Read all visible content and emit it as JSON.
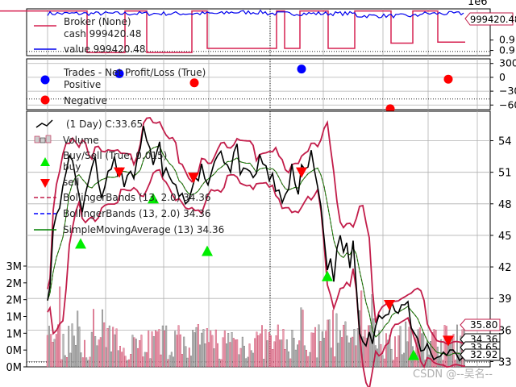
{
  "chart_data": [
    {
      "type": "line",
      "panel": "broker",
      "exponent_label": "1e6",
      "ylim": [
        999385,
        999430
      ],
      "yticks": [
        {
          "v": 999400,
          "t": "0.9"
        },
        {
          "v": 999390,
          "t": "0.9"
        }
      ],
      "series": [
        {
          "name": "Broker (None)",
          "values": []
        },
        {
          "name": "cash 999420.48",
          "color": "#d62050",
          "steps": [
            [
              0,
              999428
            ],
            [
              108,
              999428
            ],
            [
              108,
              999388
            ],
            [
              155,
              999388
            ],
            [
              155,
              999428
            ],
            [
              182,
              999428
            ],
            [
              182,
              999388
            ],
            [
              238,
              999388
            ],
            [
              238,
              999428
            ],
            [
              257,
              999428
            ],
            [
              257,
              999392
            ],
            [
              343,
              999392
            ],
            [
              343,
              999428
            ],
            [
              353,
              999428
            ],
            [
              353,
              999392
            ],
            [
              372,
              999392
            ],
            [
              372,
              999428
            ],
            [
              407,
              999428
            ],
            [
              407,
              999392
            ],
            [
              440,
              999392
            ],
            [
              440,
              999428
            ],
            [
              485,
              999428
            ],
            [
              485,
              999397
            ],
            [
              512,
              999397
            ],
            [
              512,
              999428
            ],
            [
              543,
              999428
            ],
            [
              543,
              999398
            ],
            [
              577,
              999398
            ]
          ]
        },
        {
          "name": "value 999420.48",
          "color": "#0000ee"
        }
      ],
      "last_value_label": "999420.48",
      "hline": 999389
    },
    {
      "type": "scatter",
      "panel": "trades",
      "ylim": [
        -700,
        400
      ],
      "yticks": [
        {
          "v": 300,
          "t": "300"
        },
        {
          "v": 0,
          "t": "0"
        },
        {
          "v": -300,
          "t": "−30"
        },
        {
          "v": -600,
          "t": "−60"
        }
      ],
      "title_text": "Trades - Net Profit/Loss (True)",
      "series": [
        {
          "name": "Positive",
          "color": "#0000ff",
          "points": [
            [
              148,
              80
            ],
            [
              374,
              180
            ]
          ]
        },
        {
          "name": "Negative",
          "color": "#ff0000",
          "points": [
            [
              241,
              -120
            ],
            [
              484,
              -680
            ],
            [
              556,
              -40
            ]
          ]
        }
      ]
    },
    {
      "type": "line",
      "panel": "price",
      "ylim": [
        32.5,
        56.8
      ],
      "yticks": [
        "33",
        "36",
        "39",
        "42",
        "45",
        "48",
        "51",
        "54"
      ],
      "volume_ticks": [
        "0M",
        "0M",
        "1M",
        "1M",
        "2M",
        "2M",
        "3M"
      ],
      "x_gridlines": [
        59,
        131,
        203,
        259,
        335,
        401,
        475,
        531,
        592
      ],
      "series": [
        {
          "name": "(1 Day) C:33.65",
          "color": "#000000",
          "values": [
            [
              59,
              38.8
            ],
            [
              62,
              40.2
            ],
            [
              66,
              45.6
            ],
            [
              70,
              47.0
            ],
            [
              74,
              47.6
            ],
            [
              78,
              49.7
            ],
            [
              82,
              51.0
            ],
            [
              86,
              52.6
            ],
            [
              90,
              52.1
            ],
            [
              94,
              50.4
            ],
            [
              98,
              48.8
            ],
            [
              102,
              47.2
            ],
            [
              106,
              49.0
            ],
            [
              110,
              50.2
            ],
            [
              114,
              51.5
            ],
            [
              118,
              52.5
            ],
            [
              122,
              50.0
            ],
            [
              126,
              48.6
            ],
            [
              130,
              49.6
            ],
            [
              134,
              51.1
            ],
            [
              138,
              51.3
            ],
            [
              142,
              52.5
            ],
            [
              146,
              50.7
            ],
            [
              150,
              51.3
            ],
            [
              154,
              49.6
            ],
            [
              158,
              50.7
            ],
            [
              162,
              51.1
            ],
            [
              166,
              50.4
            ],
            [
              170,
              52.2
            ],
            [
              174,
              53.3
            ],
            [
              178,
              55.4
            ],
            [
              182,
              54.0
            ],
            [
              186,
              53.3
            ],
            [
              190,
              51.7
            ],
            [
              194,
              52.8
            ],
            [
              198,
              53.9
            ],
            [
              202,
              50.7
            ],
            [
              206,
              51.4
            ],
            [
              210,
              50.6
            ],
            [
              214,
              50.0
            ],
            [
              218,
              49.8
            ],
            [
              222,
              48.7
            ],
            [
              226,
              49.0
            ],
            [
              230,
              48.0
            ],
            [
              234,
              48.3
            ],
            [
              238,
              49.4
            ],
            [
              242,
              50.5
            ],
            [
              246,
              50.2
            ],
            [
              250,
              51.8
            ],
            [
              254,
              50.4
            ],
            [
              258,
              49.8
            ],
            [
              262,
              50.9
            ],
            [
              266,
              52.0
            ],
            [
              270,
              52.6
            ],
            [
              274,
              53.0
            ],
            [
              278,
              51.9
            ],
            [
              282,
              51.7
            ],
            [
              286,
              51.0
            ],
            [
              290,
              52.9
            ],
            [
              294,
              53.7
            ],
            [
              298,
              50.8
            ],
            [
              302,
              51.4
            ],
            [
              306,
              51.3
            ],
            [
              310,
              51.1
            ],
            [
              314,
              50.5
            ],
            [
              318,
              50.9
            ],
            [
              322,
              52.7
            ],
            [
              326,
              51.8
            ],
            [
              330,
              51.6
            ],
            [
              334,
              50.2
            ],
            [
              338,
              50.9
            ],
            [
              342,
              49.2
            ],
            [
              346,
              49.3
            ],
            [
              350,
              48.1
            ],
            [
              354,
              48.9
            ],
            [
              358,
              49.4
            ],
            [
              362,
              51.8
            ],
            [
              366,
              49.9
            ],
            [
              370,
              48.9
            ],
            [
              374,
              51.7
            ],
            [
              378,
              51.3
            ],
            [
              382,
              51.5
            ],
            [
              386,
              53.1
            ],
            [
              390,
              51.2
            ],
            [
              394,
              49.6
            ],
            [
              398,
              47.8
            ],
            [
              402,
              44.7
            ],
            [
              406,
              41.7
            ],
            [
              410,
              42.8
            ],
            [
              414,
              40.6
            ],
            [
              418,
              43.8
            ],
            [
              422,
              45.0
            ],
            [
              426,
              43.4
            ],
            [
              430,
              44.3
            ],
            [
              434,
              41.9
            ],
            [
              438,
              44.5
            ],
            [
              442,
              40.1
            ],
            [
              446,
              35.7
            ],
            [
              450,
              34.9
            ],
            [
              454,
              34.5
            ],
            [
              458,
              35.8
            ],
            [
              462,
              34.7
            ],
            [
              466,
              36.4
            ],
            [
              470,
              37.4
            ],
            [
              474,
              37.1
            ],
            [
              478,
              37.4
            ],
            [
              482,
              37.5
            ],
            [
              486,
              38.6
            ],
            [
              490,
              37.8
            ],
            [
              494,
              37.6
            ],
            [
              498,
              38.4
            ],
            [
              502,
              38.4
            ],
            [
              506,
              38.7
            ],
            [
              510,
              36.2
            ],
            [
              514,
              35.7
            ],
            [
              518,
              35.2
            ],
            [
              522,
              34.0
            ],
            [
              526,
              34.1
            ],
            [
              530,
              34.7
            ],
            [
              534,
              33.9
            ],
            [
              538,
              33.2
            ],
            [
              542,
              33.4
            ],
            [
              546,
              33.5
            ],
            [
              550,
              33.9
            ],
            [
              554,
              33.6
            ],
            [
              558,
              34.1
            ],
            [
              562,
              34.1
            ],
            [
              566,
              33.7
            ],
            [
              570,
              33.1
            ],
            [
              574,
              33.4
            ],
            [
              577,
              33.65
            ]
          ]
        },
        {
          "name": "Volume",
          "color": "#aaaaaa"
        },
        {
          "name": "Buy/Sell (True, 0.015)",
          "values": []
        },
        {
          "name": "buy",
          "color": "#00ee00",
          "points": [
            [
              100,
              44.2
            ],
            [
              190,
              48.5
            ],
            [
              257,
              43.5
            ],
            [
              406,
              41.1
            ],
            [
              513,
              33.6
            ]
          ]
        },
        {
          "name": "sell",
          "color": "#ff0000",
          "points": [
            [
              148,
              51.0
            ],
            [
              240,
              50.5
            ],
            [
              374,
              51.0
            ],
            [
              483,
              38.4
            ],
            [
              556,
              35.0
            ]
          ]
        },
        {
          "name": "BollingerBands (13, 2.0) 34.36",
          "color": "#c21d4a",
          "style": "dashed"
        },
        {
          "name": "BollingerBands (13, 2.0) 34.36",
          "color": "#0000ff",
          "style": "dashed"
        },
        {
          "name": "SimpleMovingAverage (13) 34.36",
          "color": "#008000"
        }
      ],
      "value_labels": [
        {
          "text": "35.80",
          "v": 35.8,
          "color": "#c21d4a"
        },
        {
          "text": "34.36",
          "v": 34.36,
          "color": "#000000"
        },
        {
          "text": "33.65",
          "v": 33.65,
          "color": "#000000"
        },
        {
          "text": "32.92",
          "v": 32.92,
          "color": "#000000"
        }
      ]
    }
  ],
  "watermark": "CSDN @--吴名--"
}
